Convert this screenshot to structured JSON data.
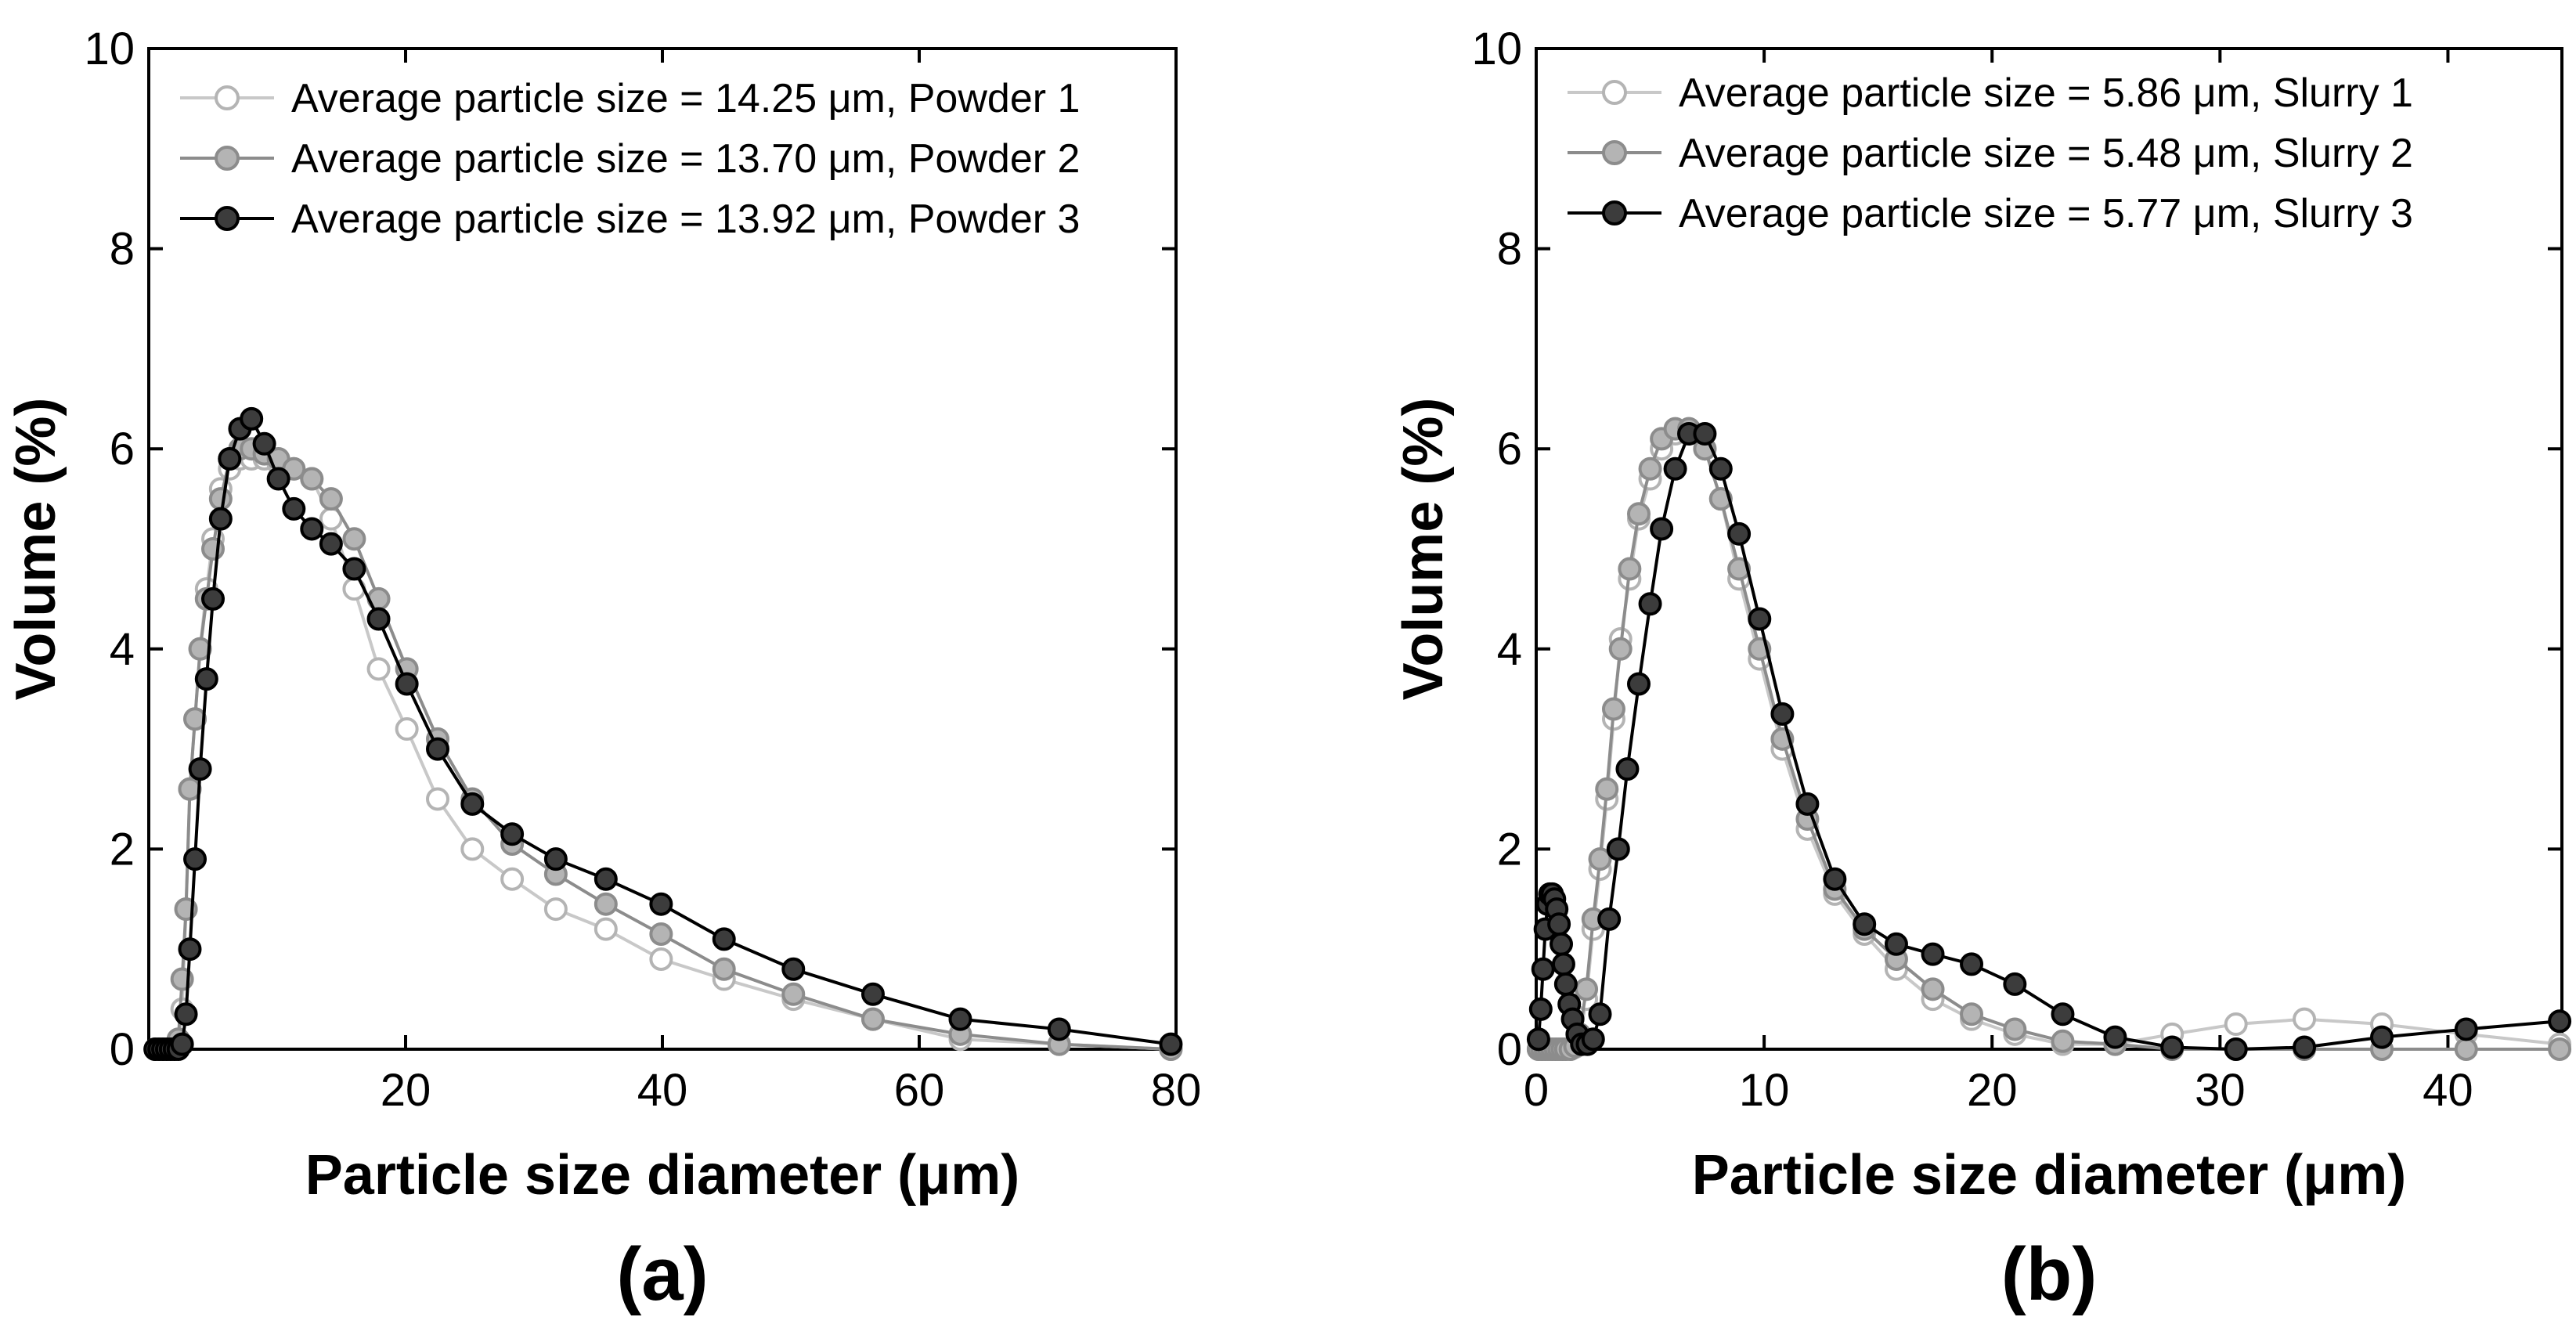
{
  "figure": {
    "label_a": "(a)",
    "label_b": "(b)"
  },
  "chart_data": [
    {
      "type": "line",
      "panel": "(a)",
      "xlabel": "Particle size diameter (μm)",
      "ylabel": "Volume (%)",
      "xlim": [
        0,
        80
      ],
      "ylim": [
        0,
        10
      ],
      "xticks": [
        20,
        40,
        60,
        80
      ],
      "yticks": [
        0,
        2,
        4,
        6,
        8,
        10
      ],
      "legend_position": "top-left",
      "series": [
        {
          "name": "Average particle size = 14.25 μm, Powder 1",
          "color": "#c8c8c8",
          "marker_fill": "#ffffff",
          "marker_edge": "#b4b4b4",
          "x": [
            0.5,
            0.8,
            1.1,
            1.4,
            1.7,
            2.0,
            2.3,
            2.6,
            2.9,
            3.2,
            3.6,
            4.0,
            4.5,
            5.0,
            5.6,
            6.3,
            7.1,
            8.0,
            9.0,
            10.1,
            11.3,
            12.7,
            14.2,
            16.0,
            17.9,
            20.1,
            22.5,
            25.2,
            28.3,
            31.7,
            35.6,
            39.9,
            44.8,
            50.2,
            56.4,
            63.2,
            70.9,
            79.6
          ],
          "y": [
            0,
            0,
            0,
            0,
            0,
            0,
            0.05,
            0.4,
            1.4,
            2.6,
            3.3,
            4.0,
            4.6,
            5.1,
            5.6,
            5.8,
            5.9,
            5.9,
            5.9,
            5.85,
            5.8,
            5.7,
            5.3,
            4.6,
            3.8,
            3.2,
            2.5,
            2.0,
            1.7,
            1.4,
            1.2,
            0.9,
            0.7,
            0.5,
            0.3,
            0.1,
            0.05,
            0
          ]
        },
        {
          "name": "Average particle size = 13.70 μm, Powder 2",
          "color": "#8c8c8c",
          "marker_fill": "#b4b4b4",
          "marker_edge": "#8c8c8c",
          "x": [
            0.5,
            0.8,
            1.1,
            1.4,
            1.7,
            2.0,
            2.3,
            2.6,
            2.9,
            3.2,
            3.6,
            4.0,
            4.5,
            5.0,
            5.6,
            6.3,
            7.1,
            8.0,
            9.0,
            10.1,
            11.3,
            12.7,
            14.2,
            16.0,
            17.9,
            20.1,
            22.5,
            25.2,
            28.3,
            31.7,
            35.6,
            39.9,
            44.8,
            50.2,
            56.4,
            63.2,
            70.9,
            79.6
          ],
          "y": [
            0,
            0,
            0,
            0,
            0,
            0,
            0.1,
            0.7,
            1.4,
            2.6,
            3.3,
            4.0,
            4.5,
            5.0,
            5.5,
            5.9,
            6.0,
            6.0,
            5.95,
            5.9,
            5.8,
            5.7,
            5.5,
            5.1,
            4.5,
            3.8,
            3.1,
            2.5,
            2.05,
            1.75,
            1.45,
            1.15,
            0.8,
            0.55,
            0.3,
            0.15,
            0.05,
            0
          ]
        },
        {
          "name": "Average particle size = 13.92 μm, Powder 3",
          "color": "#000000",
          "marker_fill": "#3c3c3c",
          "marker_edge": "#000000",
          "x": [
            0.5,
            0.8,
            1.1,
            1.4,
            1.7,
            2.0,
            2.3,
            2.6,
            2.9,
            3.2,
            3.6,
            4.0,
            4.5,
            5.0,
            5.6,
            6.3,
            7.1,
            8.0,
            9.0,
            10.1,
            11.3,
            12.7,
            14.2,
            16.0,
            17.9,
            20.1,
            22.5,
            25.2,
            28.3,
            31.7,
            35.6,
            39.9,
            44.8,
            50.2,
            56.4,
            63.2,
            70.9,
            79.6
          ],
          "y": [
            0,
            0,
            0,
            0,
            0,
            0,
            0,
            0.05,
            0.35,
            1.0,
            1.9,
            2.8,
            3.7,
            4.5,
            5.3,
            5.9,
            6.2,
            6.3,
            6.05,
            5.7,
            5.4,
            5.2,
            5.05,
            4.8,
            4.3,
            3.65,
            3.0,
            2.45,
            2.15,
            1.9,
            1.7,
            1.45,
            1.1,
            0.8,
            0.55,
            0.3,
            0.2,
            0.05
          ]
        }
      ]
    },
    {
      "type": "line",
      "panel": "(b)",
      "xlabel": "Particle size diameter (μm)",
      "ylabel": "Volume (%)",
      "xlim": [
        0,
        45
      ],
      "ylim": [
        0,
        10
      ],
      "xticks": [
        0,
        10,
        20,
        30,
        40
      ],
      "yticks": [
        0,
        2,
        4,
        6,
        8,
        10
      ],
      "legend_position": "top-left",
      "series": [
        {
          "name": "Average particle size = 5.86 μm, Slurry 1",
          "color": "#c8c8c8",
          "marker_fill": "#ffffff",
          "marker_edge": "#b4b4b4",
          "x": [
            0.1,
            0.25,
            0.4,
            0.55,
            0.7,
            0.85,
            1.0,
            1.15,
            1.3,
            1.5,
            1.7,
            1.9,
            2.2,
            2.5,
            2.8,
            3.1,
            3.4,
            3.7,
            4.1,
            4.5,
            5.0,
            5.5,
            6.1,
            6.7,
            7.4,
            8.1,
            8.9,
            9.8,
            10.8,
            11.9,
            13.1,
            14.4,
            15.8,
            17.4,
            19.1,
            21.0,
            23.1,
            25.4,
            27.9,
            30.7,
            33.7,
            37.1,
            40.8,
            44.9
          ],
          "y": [
            0,
            0,
            0,
            0,
            0,
            0,
            0,
            0,
            0,
            0,
            0.02,
            0.1,
            0.5,
            1.2,
            1.8,
            2.5,
            3.3,
            4.1,
            4.7,
            5.3,
            5.7,
            6.0,
            6.15,
            6.2,
            6.0,
            5.5,
            4.7,
            3.9,
            3.0,
            2.2,
            1.55,
            1.15,
            0.8,
            0.5,
            0.3,
            0.15,
            0.05,
            0.05,
            0.15,
            0.25,
            0.3,
            0.25,
            0.15,
            0.05
          ]
        },
        {
          "name": "Average particle size = 5.48 μm, Slurry 2",
          "color": "#8c8c8c",
          "marker_fill": "#b4b4b4",
          "marker_edge": "#8c8c8c",
          "x": [
            0.1,
            0.25,
            0.4,
            0.55,
            0.7,
            0.85,
            1.0,
            1.15,
            1.3,
            1.5,
            1.7,
            1.9,
            2.2,
            2.5,
            2.8,
            3.1,
            3.4,
            3.7,
            4.1,
            4.5,
            5.0,
            5.5,
            6.1,
            6.7,
            7.4,
            8.1,
            8.9,
            9.8,
            10.8,
            11.9,
            13.1,
            14.4,
            15.8,
            17.4,
            19.1,
            21.0,
            23.1,
            25.4,
            27.9,
            30.7,
            33.7,
            37.1,
            40.8,
            44.9
          ],
          "y": [
            0,
            0,
            0,
            0,
            0,
            0,
            0,
            0,
            0,
            0,
            0.03,
            0.15,
            0.6,
            1.3,
            1.9,
            2.6,
            3.4,
            4.0,
            4.8,
            5.35,
            5.8,
            6.1,
            6.2,
            6.2,
            6.0,
            5.5,
            4.8,
            4.0,
            3.1,
            2.3,
            1.6,
            1.2,
            0.9,
            0.6,
            0.35,
            0.2,
            0.08,
            0.05,
            0.0,
            0.0,
            0.0,
            0.0,
            0.0,
            0.0
          ]
        },
        {
          "name": "Average particle size = 5.77 μm, Slurry 3",
          "color": "#000000",
          "marker_fill": "#3c3c3c",
          "marker_edge": "#000000",
          "x": [
            0.1,
            0.2,
            0.3,
            0.4,
            0.5,
            0.6,
            0.7,
            0.8,
            0.9,
            1.0,
            1.1,
            1.2,
            1.3,
            1.45,
            1.6,
            1.8,
            2.0,
            2.25,
            2.5,
            2.8,
            3.2,
            3.6,
            4.0,
            4.5,
            5.0,
            5.5,
            6.1,
            6.7,
            7.4,
            8.1,
            8.9,
            9.8,
            10.8,
            11.9,
            13.1,
            14.4,
            15.8,
            17.4,
            19.1,
            21.0,
            23.1,
            25.4,
            27.9,
            30.7,
            33.7,
            37.1,
            40.8,
            44.9
          ],
          "y": [
            0.1,
            0.4,
            0.8,
            1.2,
            1.45,
            1.55,
            1.55,
            1.5,
            1.4,
            1.25,
            1.05,
            0.85,
            0.65,
            0.45,
            0.3,
            0.15,
            0.05,
            0.05,
            0.1,
            0.35,
            1.3,
            2.0,
            2.8,
            3.65,
            4.45,
            5.2,
            5.8,
            6.15,
            6.15,
            5.8,
            5.15,
            4.3,
            3.35,
            2.45,
            1.7,
            1.25,
            1.05,
            0.95,
            0.85,
            0.65,
            0.35,
            0.12,
            0.02,
            0.0,
            0.02,
            0.12,
            0.2,
            0.28
          ]
        }
      ]
    }
  ]
}
